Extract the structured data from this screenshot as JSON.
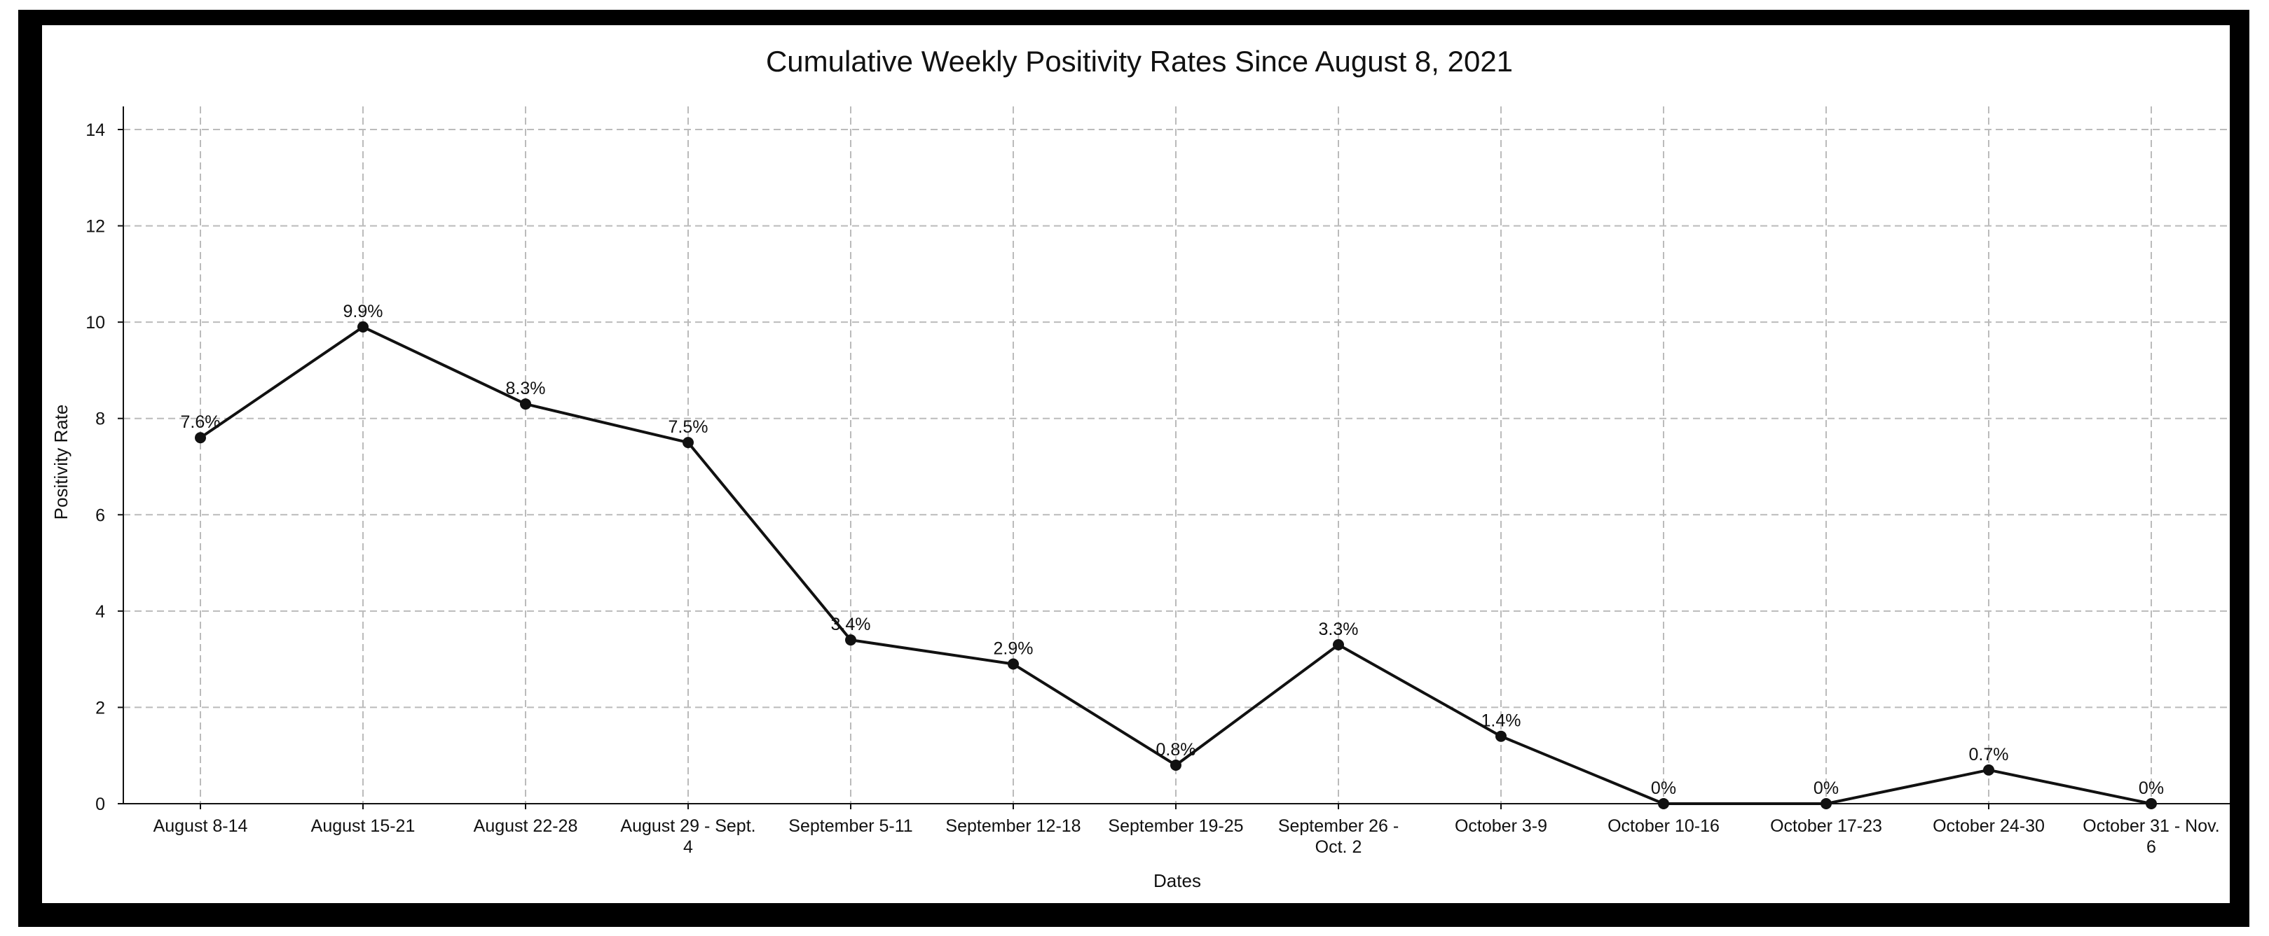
{
  "chart_data": {
    "type": "line",
    "title": "Cumulative Weekly Positivity Rates Since August 8, 2021",
    "xlabel": "Dates",
    "ylabel": "Positivity Rate",
    "ylim": [
      0,
      15
    ],
    "yticks": [
      0,
      2,
      4,
      6,
      8,
      10,
      12,
      14
    ],
    "grid": true,
    "categories": [
      "August 8-14",
      "August 15-21",
      "August 22-28",
      "August 29 - Sept. 4",
      "September 5-11",
      "September 12-18",
      "September 19-25",
      "September 26 - Oct. 2",
      "October 3-9",
      "October 10-16",
      "October 17-23",
      "October 24-30",
      "October 31 - Nov. 6"
    ],
    "category_lines": [
      [
        "August 8-14"
      ],
      [
        "August 15-21"
      ],
      [
        "August 22-28"
      ],
      [
        "August 29 - Sept.",
        "4"
      ],
      [
        "September 5-11"
      ],
      [
        "September 12-18"
      ],
      [
        "September 19-25"
      ],
      [
        "September 26 -",
        "Oct. 2"
      ],
      [
        "October 3-9"
      ],
      [
        "October 10-16"
      ],
      [
        "October 17-23"
      ],
      [
        "October 24-30"
      ],
      [
        "October 31 - Nov.",
        "6"
      ]
    ],
    "series": [
      {
        "values": [
          7.6,
          9.9,
          8.3,
          7.5,
          3.4,
          2.9,
          0.8,
          3.3,
          1.4,
          0,
          0,
          0.7,
          0
        ],
        "labels": [
          "7.6%",
          "9.9%",
          "8.3%",
          "7.5%",
          "3.4%",
          "2.9%",
          "0.8%",
          "3.3%",
          "1.4%",
          "0%",
          "0%",
          "0.7%",
          "0%"
        ]
      }
    ],
    "colors": {
      "line": "#111111",
      "grid": "#bbbbbb",
      "frame": "#000000"
    }
  }
}
